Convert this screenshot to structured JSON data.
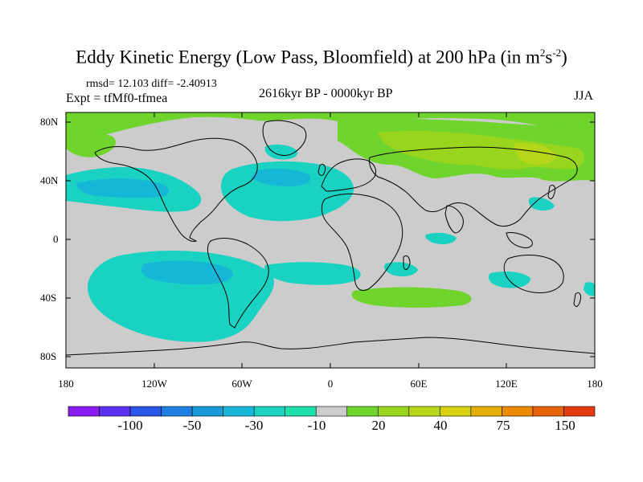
{
  "title": {
    "main": "Eddy Kinetic Energy (Low Pass, Bloomfield) at 200 hPa (in m",
    "sup1": "2",
    "mid": "s",
    "sup2": "-2",
    "end": ")"
  },
  "subtitle": {
    "stats": "rmsd= 12.103 diff= -2.40913",
    "experiment": "Expt = tfMf0-tfmea",
    "period": "2616kyr BP - 0000kyr BP",
    "season": "JJA"
  },
  "axes": {
    "lat_labels": [
      "80N",
      "40N",
      "0",
      "40S",
      "80S"
    ],
    "lat_values": [
      80,
      40,
      0,
      -40,
      -80
    ],
    "lon_labels": [
      "180",
      "120W",
      "60W",
      "0",
      "60E",
      "120E",
      "180"
    ],
    "lon_values": [
      -180,
      -120,
      -60,
      0,
      60,
      120,
      180
    ]
  },
  "colors": {
    "land_background": "#cccccc",
    "ocean_neutral": "#cccccc",
    "positive_light": "#6fd52c",
    "positive_mid": "#99d51e",
    "positive_yellowgreen": "#b6d61a",
    "negative_light": "#19d2c1",
    "negative_mid": "#16b6d7",
    "coastline": "#000000"
  },
  "colorbar": {
    "colors": [
      "#8a1df0",
      "#5a2ff0",
      "#2a56e8",
      "#1f7fe0",
      "#189ad8",
      "#16b6d7",
      "#19d2c1",
      "#1ee0a8",
      "#cccccc",
      "#6fd52c",
      "#99d51e",
      "#b6d61a",
      "#d8d212",
      "#e6b00c",
      "#ec8a0a",
      "#e8640a",
      "#e33a10"
    ],
    "labels": [
      "-100",
      "-50",
      "-30",
      "-10",
      "20",
      "40",
      "75",
      "150"
    ]
  },
  "chart_data": {
    "type": "heatmap",
    "title": "Eddy Kinetic Energy (Low Pass, Bloomfield) at 200 hPa (in m2s-2)",
    "variable": "Eddy Kinetic Energy difference",
    "units": "m2 s-2",
    "xlim": [
      -180,
      180
    ],
    "ylim": [
      -90,
      90
    ],
    "contour_levels": [
      -100,
      -50,
      -30,
      -10,
      20,
      40,
      75,
      150
    ],
    "regions": [
      {
        "name": "arctic-positive",
        "lon_range": [
          -180,
          180
        ],
        "lat_range": [
          70,
          90
        ],
        "sign": "positive",
        "value_approx": 15
      },
      {
        "name": "eurasia-positive",
        "lon_range": [
          20,
          150
        ],
        "lat_range": [
          35,
          80
        ],
        "sign": "positive",
        "value_approx": 25
      },
      {
        "name": "north-pacific-negative",
        "lon_range": [
          -180,
          -100
        ],
        "lat_range": [
          25,
          50
        ],
        "sign": "negative",
        "value_approx": -20
      },
      {
        "name": "north-atlantic-negative",
        "lon_range": [
          -70,
          -10
        ],
        "lat_range": [
          15,
          55
        ],
        "sign": "negative",
        "value_approx": -25
      },
      {
        "name": "south-pacific-negative",
        "lon_range": [
          -160,
          -60
        ],
        "lat_range": [
          -65,
          -20
        ],
        "sign": "negative",
        "value_approx": -20
      },
      {
        "name": "south-atlantic-negative",
        "lon_range": [
          -40,
          20
        ],
        "lat_range": [
          -40,
          -20
        ],
        "sign": "negative",
        "value_approx": -15
      },
      {
        "name": "southern-ocean-positive",
        "lon_range": [
          10,
          80
        ],
        "lat_range": [
          -45,
          -35
        ],
        "sign": "positive",
        "value_approx": 15
      }
    ]
  }
}
